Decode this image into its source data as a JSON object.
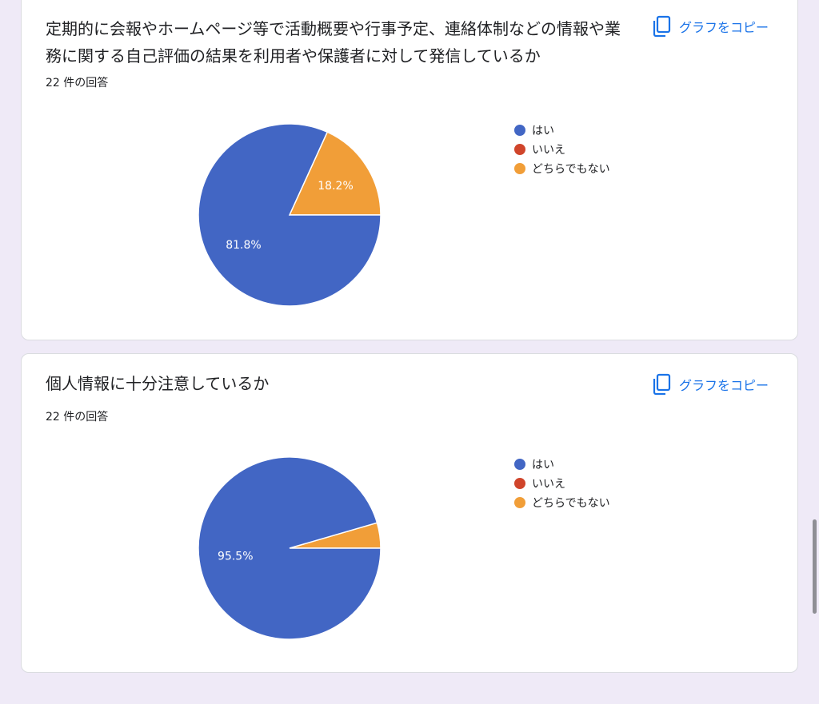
{
  "copy_label": "グラフをコピー",
  "legend_labels": [
    "はい",
    "いいえ",
    "どちらでもない"
  ],
  "colors": {
    "yes": "#4266c4",
    "no": "#d0452b",
    "neither": "#f19e38",
    "link": "#1a73e8"
  },
  "cards": [
    {
      "title": "定期的に会報やホームページ等で活動概要や行事予定、連絡体制などの情報や業務に関する自己評価の結果を利用者や保護者に対して発信しているか",
      "responses": "22 件の回答"
    },
    {
      "title": "個人情報に十分注意しているか",
      "responses": "22 件の回答"
    }
  ],
  "chart_data": [
    {
      "type": "pie",
      "categories": [
        "はい",
        "いいえ",
        "どちらでもない"
      ],
      "values": [
        81.8,
        0,
        18.2
      ],
      "labels": [
        "81.8%",
        "",
        "18.2%"
      ],
      "legend": "right"
    },
    {
      "type": "pie",
      "categories": [
        "はい",
        "いいえ",
        "どちらでもない"
      ],
      "values": [
        95.5,
        0,
        4.5
      ],
      "labels": [
        "95.5%",
        "",
        ""
      ],
      "legend": "right"
    }
  ]
}
